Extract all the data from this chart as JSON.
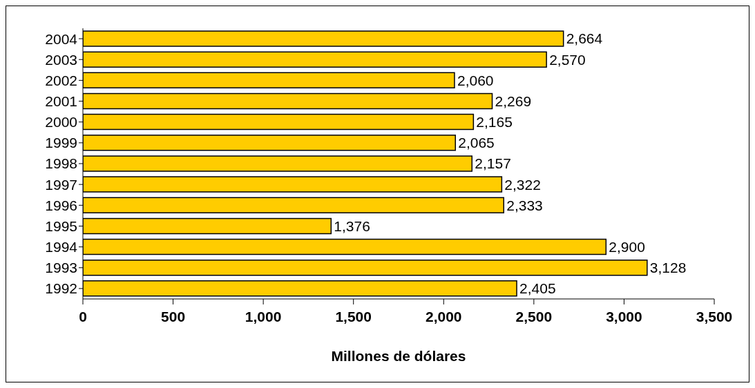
{
  "chart_data": {
    "type": "bar",
    "orientation": "horizontal",
    "xlabel": "Millones de dólares",
    "categories": [
      "2004",
      "2003",
      "2002",
      "2001",
      "2000",
      "1999",
      "1998",
      "1997",
      "1996",
      "1995",
      "1994",
      "1993",
      "1992"
    ],
    "values": [
      2664,
      2570,
      2060,
      2269,
      2165,
      2065,
      2157,
      2322,
      2333,
      1376,
      2900,
      3128,
      2405
    ],
    "value_labels": [
      "2,664",
      "2,570",
      "2,060",
      "2,269",
      "2,165",
      "2,065",
      "2,157",
      "2,322",
      "2,333",
      "1,376",
      "2,900",
      "3,128",
      "2,405"
    ],
    "color": "#ffcc00",
    "xlim": [
      0,
      3500
    ],
    "xticks": [
      0,
      500,
      {
        "value": 1000,
        "label": "1,000"
      },
      {
        "value": 1500,
        "label": "1,500"
      },
      {
        "value": 2000,
        "label": "2,000"
      },
      {
        "value": 2500,
        "label": "2,500"
      },
      {
        "value": 3000,
        "label": "3,000"
      },
      {
        "value": 3500,
        "label": "3,500"
      }
    ],
    "grid": false,
    "legend": false
  }
}
